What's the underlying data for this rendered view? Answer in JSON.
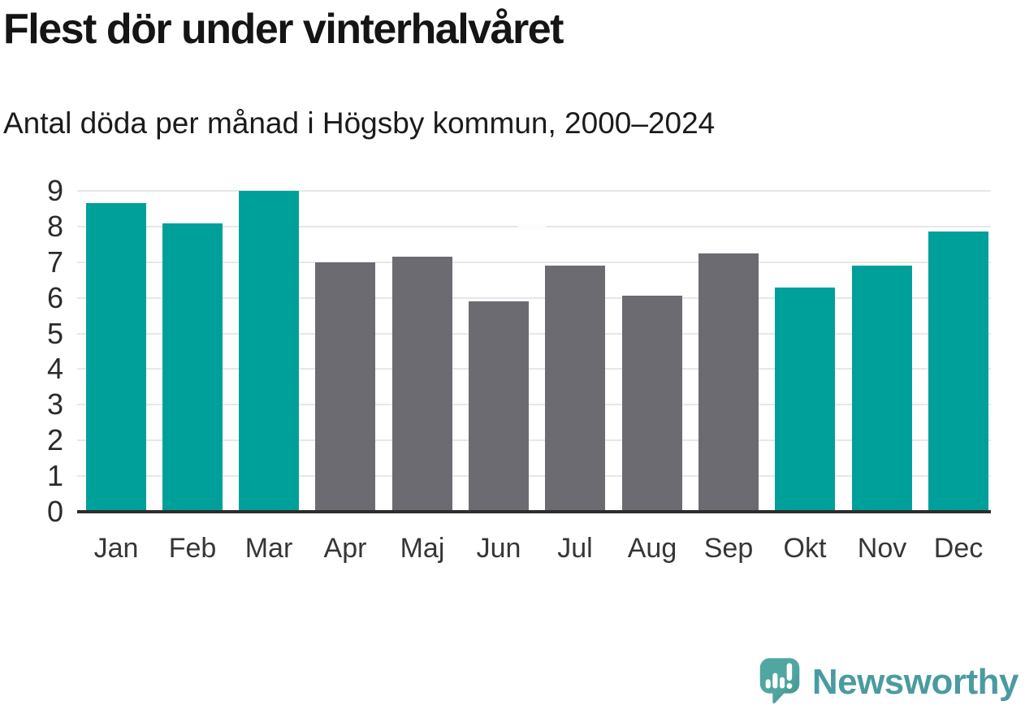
{
  "header": {
    "title": "Flest dör under vinterhalvåret",
    "subtitle": "Antal döda per månad i Högsby kommun, 2000–2024"
  },
  "chart_data": {
    "type": "bar",
    "title": "Flest dör under vinterhalvåret",
    "subtitle": "Antal döda per månad i Högsby kommun, 2000–2024",
    "categories": [
      "Jan",
      "Feb",
      "Mar",
      "Apr",
      "Maj",
      "Jun",
      "Jul",
      "Aug",
      "Sep",
      "Okt",
      "Nov",
      "Dec"
    ],
    "values": [
      8.65,
      8.1,
      9.0,
      7.0,
      7.15,
      5.9,
      6.9,
      6.05,
      7.25,
      6.3,
      6.9,
      7.85
    ],
    "highlight_winter_months": [
      true,
      true,
      true,
      false,
      false,
      false,
      false,
      false,
      false,
      true,
      true,
      true
    ],
    "colors": {
      "winter_bar": "#00a09a",
      "summer_bar": "#6c6b71",
      "gridline": "#e7e7e7",
      "axis": "#2d2d2d"
    },
    "xlabel": "",
    "ylabel": "",
    "ylim": [
      0,
      9
    ],
    "yticks": [
      0,
      1,
      2,
      3,
      4,
      5,
      6,
      7,
      8,
      9
    ],
    "grid": true,
    "legend": "none"
  },
  "footer": {
    "brand_label": "Newsworthy",
    "logo_icon": "newsworthy-speech-bubble-bar-chart-icon",
    "brand_text_color": "#4a9ba1",
    "logo_mark_color": "#50a7a1",
    "logo_mark_shade_color": "#3f8f8c"
  }
}
